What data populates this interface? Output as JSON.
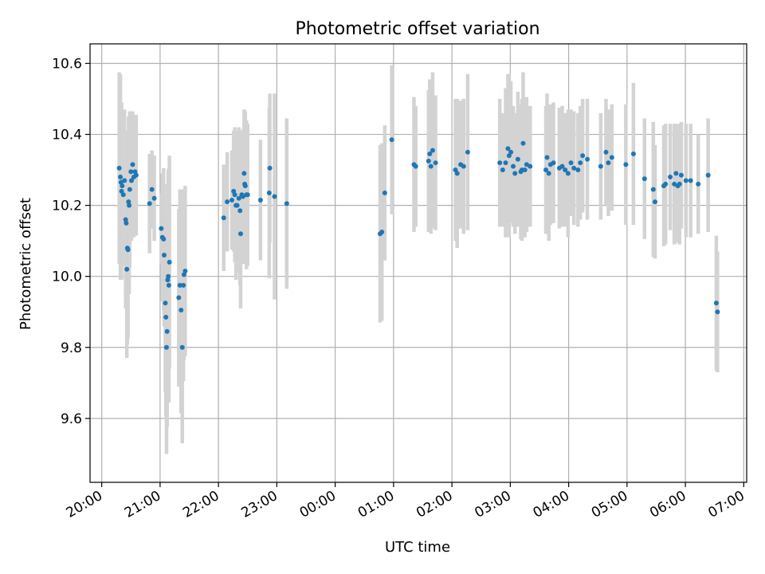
{
  "chart_data": {
    "type": "scatter",
    "title": "Photometric offset variation",
    "xlabel": "UTC time",
    "ylabel": "Photometric offset",
    "grid": true,
    "x_unit": "hours (UTC, hours after 24:00 wrap into next day)",
    "xlim": [
      19.8,
      31.05
    ],
    "ylim": [
      9.42,
      10.655
    ],
    "x_ticks": [
      20,
      21,
      22,
      23,
      24,
      25,
      26,
      27,
      28,
      29,
      30,
      31
    ],
    "x_tick_labels": [
      "20:00",
      "21:00",
      "22:00",
      "23:00",
      "00:00",
      "01:00",
      "02:00",
      "03:00",
      "04:00",
      "05:00",
      "06:00",
      "07:00"
    ],
    "y_ticks": [
      9.6,
      9.8,
      10.0,
      10.2,
      10.4,
      10.6
    ],
    "y_tick_labels": [
      "9.6",
      "9.8",
      "10.0",
      "10.2",
      "10.4",
      "10.6"
    ],
    "point_color": "#1f77b4",
    "errorbar_color": "#d3d3d3",
    "series": [
      {
        "points": [
          [
            20.3,
            10.305,
            0.27
          ],
          [
            20.32,
            10.28,
            0.29
          ],
          [
            20.33,
            10.265,
            0.22
          ],
          [
            20.34,
            10.24,
            0.25
          ],
          [
            20.35,
            10.255,
            0.21
          ],
          [
            20.37,
            10.23,
            0.2
          ],
          [
            20.39,
            10.27,
            0.2
          ],
          [
            20.41,
            10.16,
            0.25
          ],
          [
            20.42,
            10.15,
            0.24
          ],
          [
            20.43,
            10.02,
            0.25
          ],
          [
            20.44,
            10.08,
            0.27
          ],
          [
            20.45,
            10.075,
            0.25
          ],
          [
            20.46,
            10.21,
            0.24
          ],
          [
            20.47,
            10.2,
            0.25
          ],
          [
            20.48,
            10.245,
            0.22
          ],
          [
            20.5,
            10.295,
            0.15
          ],
          [
            20.51,
            10.27,
            0.17
          ],
          [
            20.53,
            10.315,
            0.15
          ],
          [
            20.55,
            10.28,
            0.17
          ],
          [
            20.57,
            10.295,
            0.16
          ],
          [
            20.59,
            10.285,
            0.17
          ],
          [
            20.82,
            10.205,
            0.14
          ],
          [
            20.86,
            10.245,
            0.11
          ],
          [
            20.9,
            10.22,
            0.12
          ],
          [
            21.02,
            10.135,
            0.1
          ],
          [
            21.04,
            10.11,
            0.18
          ],
          [
            21.06,
            10.105,
            0.2
          ],
          [
            21.07,
            10.06,
            0.2
          ],
          [
            21.09,
            9.925,
            0.25
          ],
          [
            21.1,
            9.885,
            0.28
          ],
          [
            21.11,
            9.8,
            0.3
          ],
          [
            21.12,
            9.845,
            0.27
          ],
          [
            21.13,
            9.99,
            0.27
          ],
          [
            21.14,
            10.0,
            0.3
          ],
          [
            21.15,
            9.975,
            0.33
          ],
          [
            21.16,
            10.04,
            0.3
          ],
          [
            21.32,
            9.94,
            0.25
          ],
          [
            21.34,
            9.975,
            0.27
          ],
          [
            21.36,
            9.905,
            0.29
          ],
          [
            21.38,
            9.8,
            0.27
          ],
          [
            21.4,
            9.975,
            0.27
          ],
          [
            21.41,
            10.005,
            0.24
          ],
          [
            21.43,
            10.015,
            0.24
          ],
          [
            22.09,
            10.165,
            0.15
          ],
          [
            22.15,
            10.21,
            0.14
          ],
          [
            22.23,
            10.215,
            0.14
          ],
          [
            22.26,
            10.24,
            0.17
          ],
          [
            22.28,
            10.23,
            0.19
          ],
          [
            22.3,
            10.2,
            0.21
          ],
          [
            22.32,
            10.2,
            0.19
          ],
          [
            22.35,
            10.22,
            0.2
          ],
          [
            22.37,
            10.185,
            0.21
          ],
          [
            22.38,
            10.12,
            0.21
          ],
          [
            22.4,
            10.23,
            0.18
          ],
          [
            22.42,
            10.225,
            0.19
          ],
          [
            22.44,
            10.29,
            0.18
          ],
          [
            22.45,
            10.26,
            0.2
          ],
          [
            22.46,
            10.255,
            0.21
          ],
          [
            22.48,
            10.23,
            0.21
          ],
          [
            22.5,
            10.23,
            0.2
          ],
          [
            22.72,
            10.215,
            0.17
          ],
          [
            22.87,
            10.235,
            0.24
          ],
          [
            22.88,
            10.305,
            0.21
          ],
          [
            22.96,
            10.225,
            0.29
          ],
          [
            23.17,
            10.205,
            0.24
          ],
          [
            24.77,
            10.12,
            0.25
          ],
          [
            24.8,
            10.125,
            0.25
          ],
          [
            24.85,
            10.235,
            0.19
          ],
          [
            24.97,
            10.385,
            0.21
          ],
          [
            25.35,
            10.315,
            0.19
          ],
          [
            25.38,
            10.31,
            0.17
          ],
          [
            25.6,
            10.325,
            0.2
          ],
          [
            25.62,
            10.345,
            0.21
          ],
          [
            25.64,
            10.31,
            0.19
          ],
          [
            25.67,
            10.355,
            0.22
          ],
          [
            25.72,
            10.32,
            0.19
          ],
          [
            26.06,
            10.3,
            0.2
          ],
          [
            26.09,
            10.29,
            0.21
          ],
          [
            26.15,
            10.315,
            0.18
          ],
          [
            26.2,
            10.31,
            0.19
          ],
          [
            26.27,
            10.35,
            0.22
          ],
          [
            26.82,
            10.32,
            0.18
          ],
          [
            26.87,
            10.3,
            0.16
          ],
          [
            26.92,
            10.32,
            0.21
          ],
          [
            26.96,
            10.36,
            0.21
          ],
          [
            26.98,
            10.34,
            0.23
          ],
          [
            27.01,
            10.35,
            0.2
          ],
          [
            27.05,
            10.31,
            0.17
          ],
          [
            27.08,
            10.29,
            0.17
          ],
          [
            27.13,
            10.33,
            0.19
          ],
          [
            27.18,
            10.295,
            0.19
          ],
          [
            27.2,
            10.3,
            0.2
          ],
          [
            27.22,
            10.375,
            0.2
          ],
          [
            27.25,
            10.3,
            0.19
          ],
          [
            27.28,
            10.315,
            0.19
          ],
          [
            27.34,
            10.31,
            0.17
          ],
          [
            27.61,
            10.3,
            0.18
          ],
          [
            27.63,
            10.335,
            0.18
          ],
          [
            27.66,
            10.29,
            0.19
          ],
          [
            27.69,
            10.315,
            0.17
          ],
          [
            27.74,
            10.32,
            0.17
          ],
          [
            27.84,
            10.305,
            0.17
          ],
          [
            27.89,
            10.31,
            0.17
          ],
          [
            27.94,
            10.3,
            0.16
          ],
          [
            27.99,
            10.29,
            0.18
          ],
          [
            28.04,
            10.32,
            0.15
          ],
          [
            28.09,
            10.305,
            0.16
          ],
          [
            28.16,
            10.3,
            0.16
          ],
          [
            28.2,
            10.32,
            0.16
          ],
          [
            28.24,
            10.34,
            0.16
          ],
          [
            28.32,
            10.33,
            0.17
          ],
          [
            28.55,
            10.31,
            0.15
          ],
          [
            28.64,
            10.35,
            0.15
          ],
          [
            28.68,
            10.32,
            0.15
          ],
          [
            28.74,
            10.335,
            0.15
          ],
          [
            28.98,
            10.315,
            0.17
          ],
          [
            29.11,
            10.345,
            0.2
          ],
          [
            29.3,
            10.275,
            0.17
          ],
          [
            29.45,
            10.245,
            0.19
          ],
          [
            29.48,
            10.21,
            0.16
          ],
          [
            29.63,
            10.255,
            0.17
          ],
          [
            29.66,
            10.26,
            0.17
          ],
          [
            29.74,
            10.28,
            0.15
          ],
          [
            29.81,
            10.26,
            0.17
          ],
          [
            29.84,
            10.29,
            0.14
          ],
          [
            29.87,
            10.255,
            0.16
          ],
          [
            29.9,
            10.26,
            0.17
          ],
          [
            29.93,
            10.285,
            0.15
          ],
          [
            30.01,
            10.27,
            0.16
          ],
          [
            30.09,
            10.27,
            0.16
          ],
          [
            30.22,
            10.26,
            0.14
          ],
          [
            30.39,
            10.285,
            0.16
          ],
          [
            30.53,
            9.925,
            0.19
          ],
          [
            30.55,
            9.9,
            0.17
          ]
        ]
      }
    ]
  }
}
